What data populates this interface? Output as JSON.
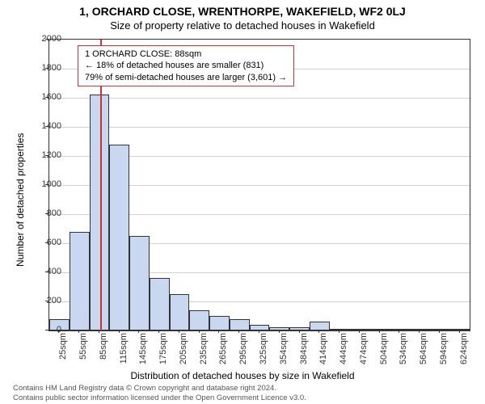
{
  "title": "1, ORCHARD CLOSE, WRENTHORPE, WAKEFIELD, WF2 0LJ",
  "subtitle": "Size of property relative to detached houses in Wakefield",
  "chart": {
    "type": "histogram",
    "ylabel": "Number of detached properties",
    "xlabel": "Distribution of detached houses by size in Wakefield",
    "ylim": [
      0,
      2000
    ],
    "ytick_step": 200,
    "yticks": [
      0,
      200,
      400,
      600,
      800,
      1000,
      1200,
      1400,
      1600,
      1800,
      2000
    ],
    "x_categories": [
      "25sqm",
      "55sqm",
      "85sqm",
      "115sqm",
      "145sqm",
      "175sqm",
      "205sqm",
      "235sqm",
      "265sqm",
      "295sqm",
      "325sqm",
      "354sqm",
      "384sqm",
      "414sqm",
      "444sqm",
      "474sqm",
      "504sqm",
      "534sqm",
      "564sqm",
      "594sqm",
      "624sqm"
    ],
    "values": [
      80,
      680,
      1620,
      1280,
      650,
      360,
      250,
      140,
      100,
      80,
      40,
      20,
      20,
      60,
      10,
      5,
      5,
      5,
      5,
      5,
      5
    ],
    "bar_color": "#c9d8f0",
    "bar_border_color": "#333333",
    "grid_color": "#d0d0d0",
    "background_color": "#ffffff",
    "reference_line": {
      "position_category": "85sqm",
      "color": "#cc3333"
    },
    "annotation": {
      "line1": "1 ORCHARD CLOSE: 88sqm",
      "line2": "← 18% of detached houses are smaller (831)",
      "line3": "79% of semi-detached houses are larger (3,601) →",
      "border_color": "#cc3333"
    },
    "title_fontsize": 14,
    "subtitle_fontsize": 13,
    "label_fontsize": 12,
    "tick_fontsize": 11
  },
  "footer": {
    "line1": "Contains HM Land Registry data © Crown copyright and database right 2024.",
    "line2": "Contains public sector information licensed under the Open Government Licence v3.0."
  }
}
